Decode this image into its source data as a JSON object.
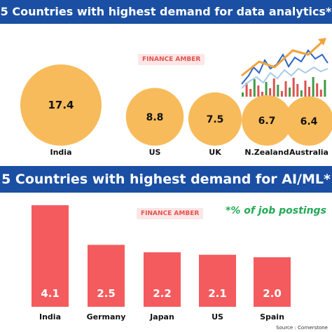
{
  "top": {
    "title": "5 Countries with highest demand for data analytics*",
    "badge": "FINANCE AMBER"
  },
  "bottom": {
    "title": "5 Countries with highest demand for AI/ML*",
    "badge": "FINANCE AMBER",
    "note": "*% of job postings"
  },
  "source": "Source : Cornerstone",
  "colors": {
    "banner": "#1a4fa3",
    "bubble": "#f8bb5b",
    "bar": "#f45b5e",
    "note": "#22aa55"
  },
  "chart_data": [
    {
      "type": "bubble",
      "categories": [
        "India",
        "US",
        "UK",
        "N.Zealand",
        "Australia"
      ],
      "values": [
        17.4,
        8.8,
        7.5,
        6.7,
        6.4
      ],
      "value_labels": [
        "17.4",
        "8.8",
        "7.5",
        "6.7",
        "6.4"
      ]
    },
    {
      "type": "bar",
      "categories": [
        "India",
        "Germany",
        "Japan",
        "US",
        "Spain"
      ],
      "values": [
        4.1,
        2.5,
        2.2,
        2.1,
        2.0
      ],
      "value_labels": [
        "4.1",
        "2.5",
        "2.2",
        "2.1",
        "2.0"
      ],
      "ylim": [
        0,
        4.1
      ]
    }
  ],
  "decoration": {
    "icon": "stock-chart-icon",
    "line_colors": [
      "#2b63c7",
      "#a9cbe8",
      "#f0a33a"
    ],
    "candle_colors": [
      "#d9534f",
      "#3f9b48"
    ]
  }
}
